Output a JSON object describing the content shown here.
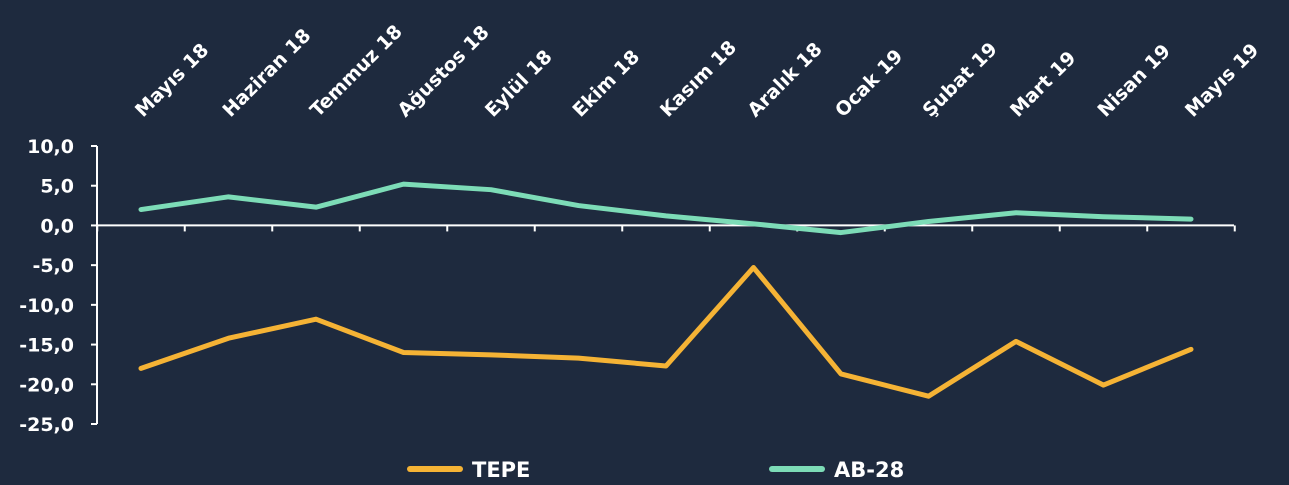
{
  "chart_data": {
    "type": "line",
    "categories": [
      "Mayıs 18",
      "Haziran 18",
      "Temmuz 18",
      "Ağustos 18",
      "Eylül 18",
      "Ekim 18",
      "Kasım 18",
      "Aralık 18",
      "Ocak 19",
      "Şubat 19",
      "Mart 19",
      "Nisan 19",
      "Mayıs 19"
    ],
    "series": [
      {
        "name": "TEPE",
        "color": "#f5b335",
        "values": [
          -18.0,
          -14.2,
          -11.8,
          -16.0,
          -16.3,
          -16.7,
          -17.7,
          -5.3,
          -18.7,
          -21.5,
          -14.6,
          -20.1,
          -15.6
        ]
      },
      {
        "name": "AB-28",
        "color": "#7ddcb7",
        "values": [
          2.0,
          3.6,
          2.3,
          5.2,
          4.5,
          2.5,
          1.2,
          0.2,
          -0.9,
          0.5,
          1.6,
          1.1,
          0.8
        ]
      }
    ],
    "ylim": [
      -25,
      10
    ],
    "yticks": [
      "10,0",
      "5,0",
      "0,0",
      "-5,0",
      "-10,0",
      "-15,0",
      "-20,0",
      "-25,0"
    ],
    "legend_position": "bottom",
    "grid": false
  }
}
